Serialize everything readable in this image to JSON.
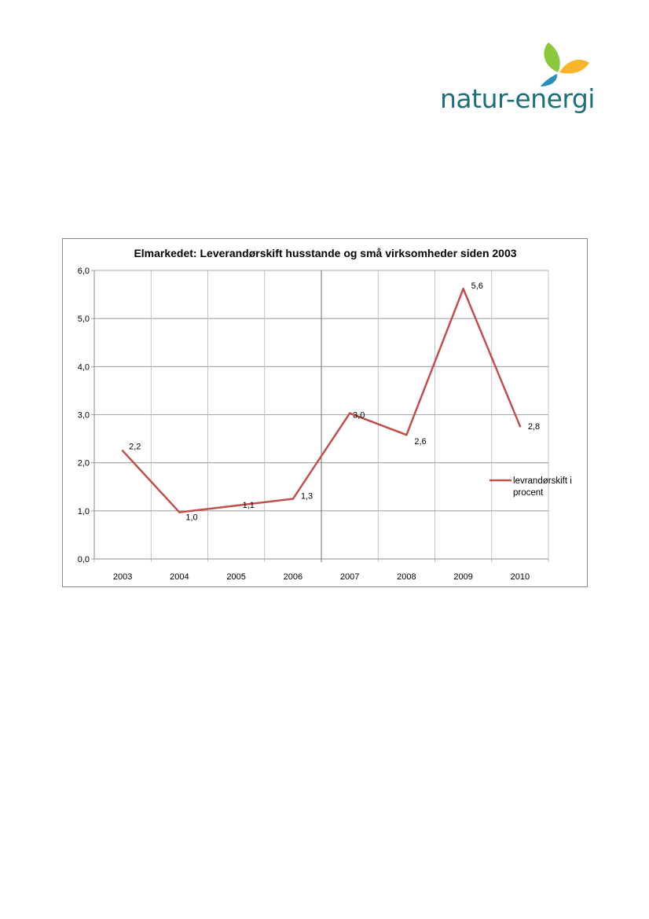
{
  "logo": {
    "text": "natur-energi",
    "colors": {
      "text": "#1f6f7a",
      "leaf_green": "#8dc63f",
      "leaf_yellow": "#f7b52b",
      "leaf_blue": "#2b8fb5"
    }
  },
  "chart_data": {
    "type": "line",
    "title": "Elmarkedet:  Leverandørskift husstande og små virksomheder siden 2003",
    "xlabel": "",
    "ylabel": "",
    "categories": [
      "2003",
      "2004",
      "2005",
      "2006",
      "2007",
      "2008",
      "2009",
      "2010"
    ],
    "ylim": [
      0,
      6
    ],
    "yticks": [
      "0,0",
      "1,0",
      "2,0",
      "3,0",
      "4,0",
      "5,0",
      "6,0"
    ],
    "grid": true,
    "legend_position": "right",
    "series": [
      {
        "name": "levrandørskift i procent",
        "color": "#c0504d",
        "values": [
          2.25,
          0.97,
          1.11,
          1.25,
          3.03,
          2.58,
          5.62,
          2.76
        ],
        "data_labels": [
          "2,2",
          "1,0",
          "1,1",
          "1,3",
          "3,0",
          "2,6",
          "5,6",
          "2,8"
        ]
      }
    ]
  }
}
